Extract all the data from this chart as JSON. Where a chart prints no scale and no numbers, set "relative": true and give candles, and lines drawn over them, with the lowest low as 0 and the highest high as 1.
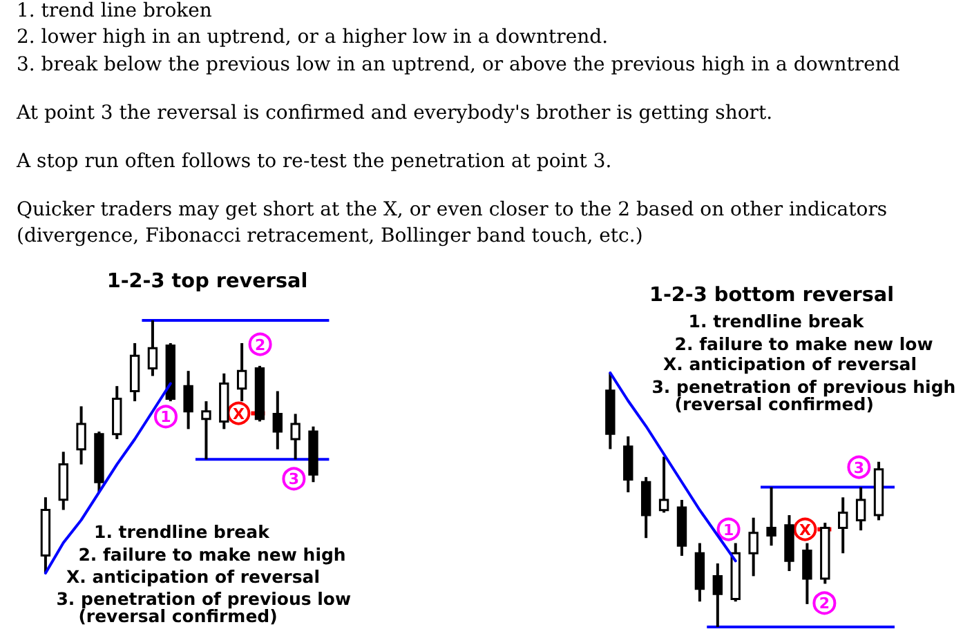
{
  "chart_data": [
    {
      "type": "other",
      "annotations": [
        "1. trend line broken\n2. lower high in an uptrend, or a higher low in a downtrend.\n3. break below the previous low in an uptrend, or above the previous high in a downtrend",
        "At point 3 the reversal is confirmed and everybody's brother is getting short.",
        "A stop run often follows to re-test the penetration at point 3.",
        "Quicker traders may get short at the X, or even closer to the 2 based on other indicators\n(divergence, Fibonacci retracement, Bollinger band touch, etc.)"
      ]
    },
    {
      "type": "candlestick",
      "title": "1-2-3 top reversal",
      "relative": true,
      "categories": [
        null,
        null,
        null,
        null,
        null,
        null,
        null,
        null,
        null,
        null,
        null,
        null,
        null,
        null,
        null,
        null
      ],
      "ohlc": [
        [
          0.07,
          0.3,
          0,
          0.25
        ],
        [
          0.29,
          0.48,
          0.25,
          0.43
        ],
        [
          0.49,
          0.66,
          0.43,
          0.59
        ],
        [
          0.55,
          0.56,
          0.32,
          0.36
        ],
        [
          0.55,
          0.74,
          0.53,
          0.69
        ],
        [
          0.72,
          0.91,
          0.68,
          0.86
        ],
        [
          0.81,
          1,
          0.78,
          0.89
        ],
        [
          0.9,
          0.91,
          0.68,
          0.69
        ],
        [
          0.74,
          0.8,
          0.57,
          0.64
        ],
        [
          0.61,
          0.68,
          0.45,
          0.64
        ],
        [
          0.6,
          0.79,
          0.57,
          0.75
        ],
        [
          0.73,
          0.91,
          0.68,
          0.8
        ],
        [
          0.81,
          0.82,
          0.6,
          0.61
        ],
        [
          0.63,
          0.72,
          0.49,
          0.56
        ],
        [
          0.53,
          0.63,
          0.45,
          0.59
        ],
        [
          0.56,
          0.58,
          0.36,
          0.39
        ]
      ],
      "color": "#000000",
      "series": [
        {
          "type": "line",
          "color": "#0000ff",
          "values": [
            0,
            0.12,
            0.21,
            0.32,
            0.43,
            0.53,
            0.64,
            0.75,
            null,
            null,
            null,
            null,
            null,
            null,
            null,
            null
          ]
        }
      ],
      "ref_lines": [
        {
          "axis": "y",
          "value": 1,
          "color": "#0000ff"
        },
        {
          "axis": "y",
          "value": 0.45,
          "color": "#0000ff"
        }
      ],
      "annotations": [
        "1",
        "2",
        "X",
        "3",
        "1. trendline break",
        "2. failure to make new high",
        "X. anticipation of reversal",
        "3. penetration of previous low",
        "(reversal confirmed)"
      ]
    },
    {
      "type": "candlestick",
      "title": "1-2-3 bottom reversal",
      "relative": true,
      "categories": [
        null,
        null,
        null,
        null,
        null,
        null,
        null,
        null,
        null,
        null,
        null,
        null,
        null,
        null,
        null,
        null
      ],
      "ohlc": [
        [
          0.93,
          1,
          0.7,
          0.76
        ],
        [
          0.71,
          0.75,
          0.53,
          0.58
        ],
        [
          0.57,
          0.59,
          0.35,
          0.44
        ],
        [
          0.46,
          0.67,
          0.45,
          0.5
        ],
        [
          0.47,
          0.5,
          0.28,
          0.32
        ],
        [
          0.29,
          0.33,
          0.1,
          0.15
        ],
        [
          0.2,
          0.25,
          0,
          0.13
        ],
        [
          0.11,
          0.33,
          0.1,
          0.29
        ],
        [
          0.29,
          0.43,
          0.2,
          0.37
        ],
        [
          0.39,
          0.55,
          0.32,
          0.36
        ],
        [
          0.4,
          0.44,
          0.22,
          0.26
        ],
        [
          0.3,
          0.33,
          0.09,
          0.19
        ],
        [
          0.19,
          0.41,
          0.17,
          0.39
        ],
        [
          0.39,
          0.51,
          0.29,
          0.45
        ],
        [
          0.42,
          0.55,
          0.38,
          0.5
        ],
        [
          0.44,
          0.65,
          0.42,
          0.62
        ]
      ],
      "color": "#000000",
      "series": [
        {
          "type": "line",
          "color": "#0000ff",
          "values": [
            1,
            0.89,
            0.79,
            0.68,
            0.57,
            0.46,
            0.36,
            0.26,
            null,
            null,
            null,
            null,
            null,
            null,
            null,
            null
          ]
        }
      ],
      "ref_lines": [
        {
          "axis": "y",
          "value": 0.55,
          "color": "#0000ff"
        },
        {
          "axis": "y",
          "value": 0,
          "color": "#0000ff"
        }
      ],
      "annotations": [
        "1. trendline break",
        "2. failure to make new low",
        "X. anticipation of reversal",
        "3. penetration of previous high",
        "(reversal confirmed)",
        "1",
        "X",
        "2",
        "3"
      ]
    }
  ]
}
